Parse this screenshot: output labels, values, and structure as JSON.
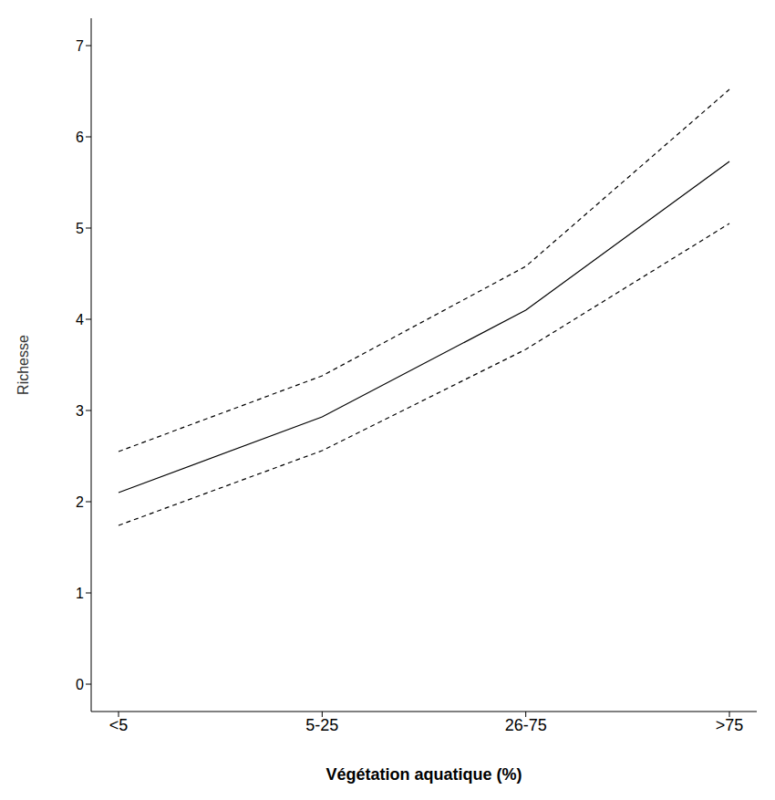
{
  "chart_data": {
    "type": "line",
    "x_label": "Végétation aquatique (%)",
    "y_label": "Richesse",
    "categories": [
      "<5",
      "5-25",
      "26-75",
      ">75"
    ],
    "series": [
      {
        "color": "#000000",
        "line_style": "solid",
        "values": [
          2.1,
          2.93,
          4.1,
          5.73
        ]
      },
      {
        "color": "#000000",
        "line_style": "dashed",
        "values": [
          2.55,
          3.38,
          4.58,
          6.52
        ]
      },
      {
        "color": "#000000",
        "line_style": "dashed",
        "values": [
          1.74,
          2.56,
          3.67,
          5.05
        ]
      }
    ],
    "ylim": [
      -0.3,
      7.3
    ],
    "yticks": [
      0,
      1,
      2,
      3,
      4,
      5,
      6,
      7
    ],
    "grid": false
  }
}
